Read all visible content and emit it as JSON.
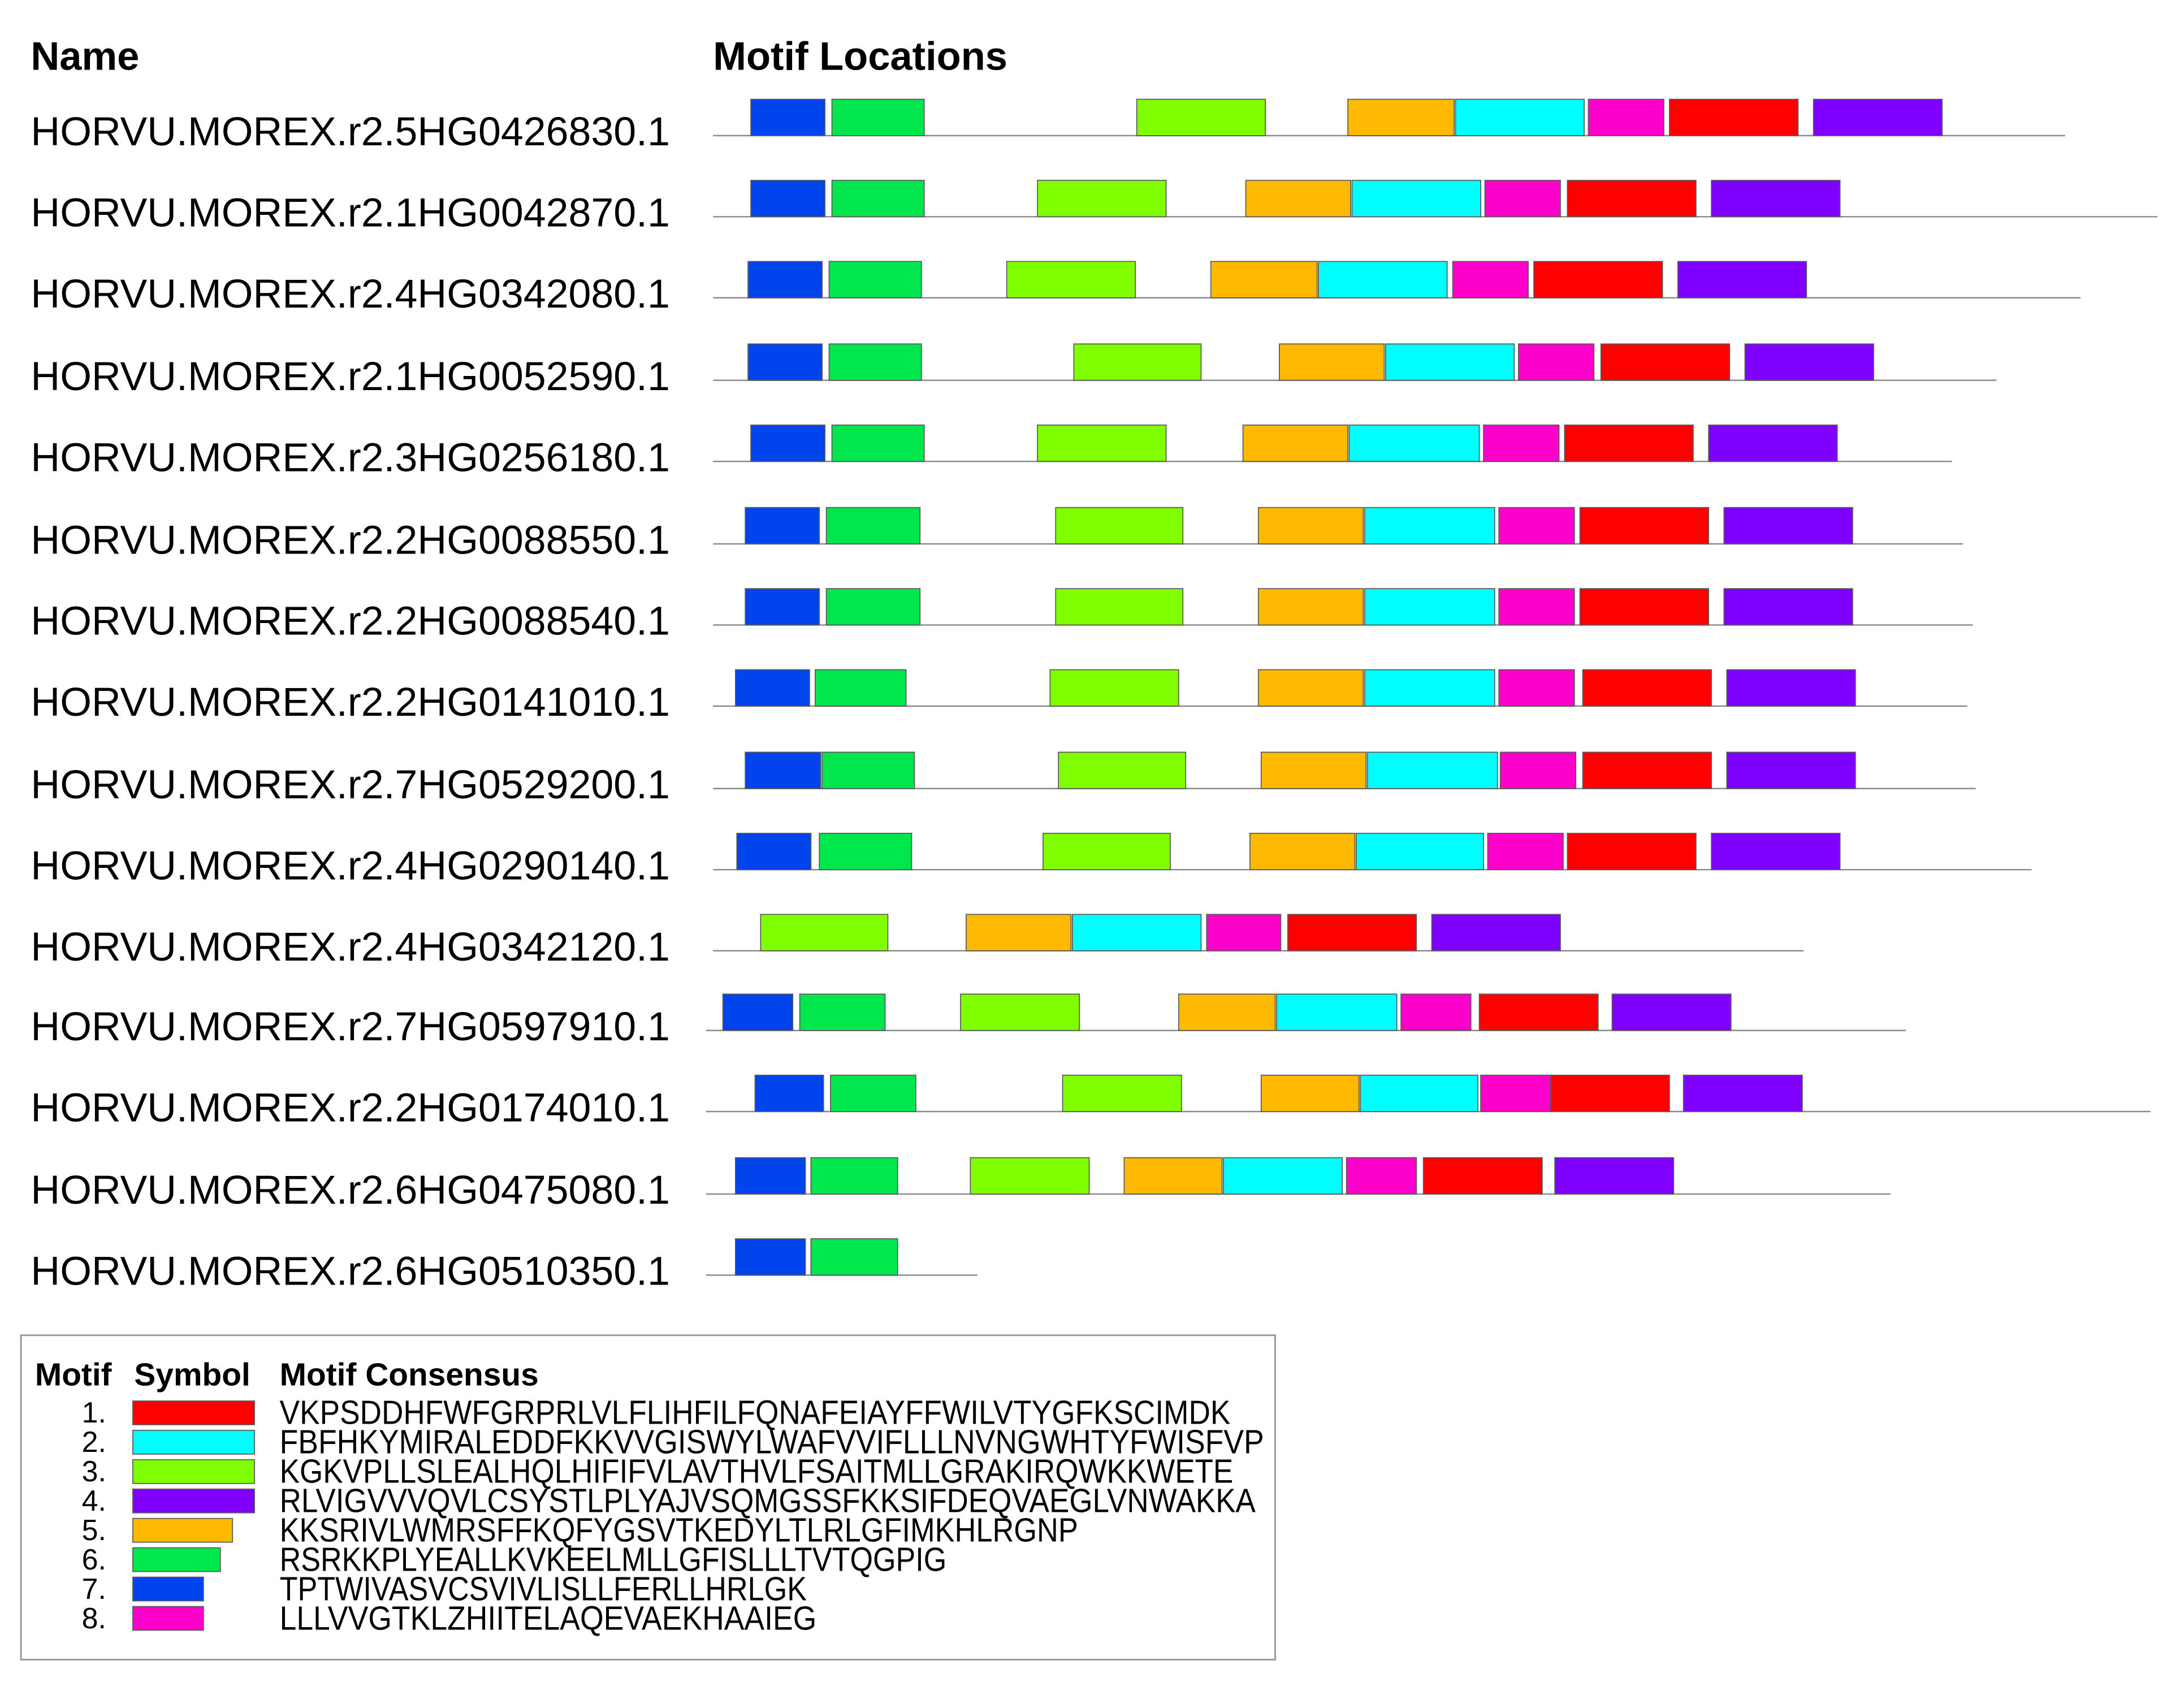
{
  "headers": {
    "name": "Name",
    "locations": "Motif Locations"
  },
  "legend": {
    "motif_header": "Motif",
    "symbol_header": "Symbol",
    "consensus_header": "Motif Consensus"
  },
  "motifs": [
    {
      "id": 1,
      "number": "1.",
      "color": "#ff0000",
      "consensus": "VKPSDDHFWFGRPRLVLFLIHFILFQNAFEIAYFFWILVTYGFKSCIMDK"
    },
    {
      "id": 2,
      "number": "2.",
      "color": "#00ffff",
      "consensus": "FBFHKYMIRALEDDFKKVVGISWYLWAFVVIFLLLNVNGWHTYFWISFVP"
    },
    {
      "id": 3,
      "number": "3.",
      "color": "#80ff00",
      "consensus": "KGKVPLLSLEALHQLHIFIFVLAVTHVLFSAITMLLGRAKIRQWKKWETE"
    },
    {
      "id": 4,
      "number": "4.",
      "color": "#8000ff",
      "consensus": "RLVIGVVVQVLCSYSTLPLYAJVSQMGSSFKKSIFDEQVAEGLVNWAKKA"
    },
    {
      "id": 5,
      "number": "5.",
      "color": "#ffb900",
      "consensus": "KKSRIVLWMRSFFKQFYGSVTKEDYLTLRLGFIMKHLRGNP"
    },
    {
      "id": 6,
      "number": "6.",
      "color": "#00e64d",
      "consensus": "RSRKKPLYEALLKVKEELMLLGFISLLLTVTQGPIG"
    },
    {
      "id": 7,
      "number": "7.",
      "color": "#0044ee",
      "consensus": "TPTWIVASVCSVIVLISLLFERLLHRLGK"
    },
    {
      "id": 8,
      "number": "8.",
      "color": "#ff00cc",
      "consensus": "LLLVVGTKLZHIITELAQEVAEKHAAIEG"
    }
  ],
  "sequences": [
    {
      "name": "HORVU.MOREX.r2.5HG0426830.1",
      "motifs": [
        7,
        6,
        3,
        5,
        2,
        8,
        1,
        4
      ]
    },
    {
      "name": "HORVU.MOREX.r2.1HG0042870.1",
      "motifs": [
        7,
        6,
        3,
        5,
        2,
        8,
        1,
        4
      ]
    },
    {
      "name": "HORVU.MOREX.r2.4HG0342080.1",
      "motifs": [
        7,
        6,
        3,
        5,
        2,
        8,
        1,
        4
      ]
    },
    {
      "name": "HORVU.MOREX.r2.1HG0052590.1",
      "motifs": [
        7,
        6,
        3,
        5,
        2,
        8,
        1,
        4
      ]
    },
    {
      "name": "HORVU.MOREX.r2.3HG0256180.1",
      "motifs": [
        7,
        6,
        3,
        5,
        2,
        8,
        1,
        4
      ]
    },
    {
      "name": "HORVU.MOREX.r2.2HG0088550.1",
      "motifs": [
        7,
        6,
        3,
        5,
        2,
        8,
        1,
        4
      ]
    },
    {
      "name": "HORVU.MOREX.r2.2HG0088540.1",
      "motifs": [
        7,
        6,
        3,
        5,
        2,
        8,
        1,
        4
      ]
    },
    {
      "name": "HORVU.MOREX.r2.2HG0141010.1",
      "motifs": [
        7,
        6,
        3,
        5,
        2,
        8,
        1,
        4
      ]
    },
    {
      "name": "HORVU.MOREX.r2.7HG0529200.1",
      "motifs": [
        7,
        6,
        3,
        5,
        2,
        8,
        1,
        4
      ]
    },
    {
      "name": "HORVU.MOREX.r2.4HG0290140.1",
      "motifs": [
        7,
        6,
        3,
        5,
        2,
        8,
        1,
        4
      ]
    },
    {
      "name": "HORVU.MOREX.r2.4HG0342120.1",
      "motifs": [
        3,
        5,
        2,
        8,
        1,
        4
      ]
    },
    {
      "name": "HORVU.MOREX.r2.7HG0597910.1",
      "motifs": [
        7,
        6,
        3,
        5,
        2,
        8,
        1,
        4
      ]
    },
    {
      "name": "HORVU.MOREX.r2.2HG0174010.1",
      "motifs": [
        7,
        6,
        3,
        5,
        2,
        8,
        1,
        4
      ]
    },
    {
      "name": "HORVU.MOREX.r2.6HG0475080.1",
      "motifs": [
        7,
        6,
        3,
        5,
        2,
        8,
        1,
        4
      ]
    },
    {
      "name": "HORVU.MOREX.r2.6HG0510350.1",
      "motifs": [
        7,
        6
      ]
    }
  ]
}
